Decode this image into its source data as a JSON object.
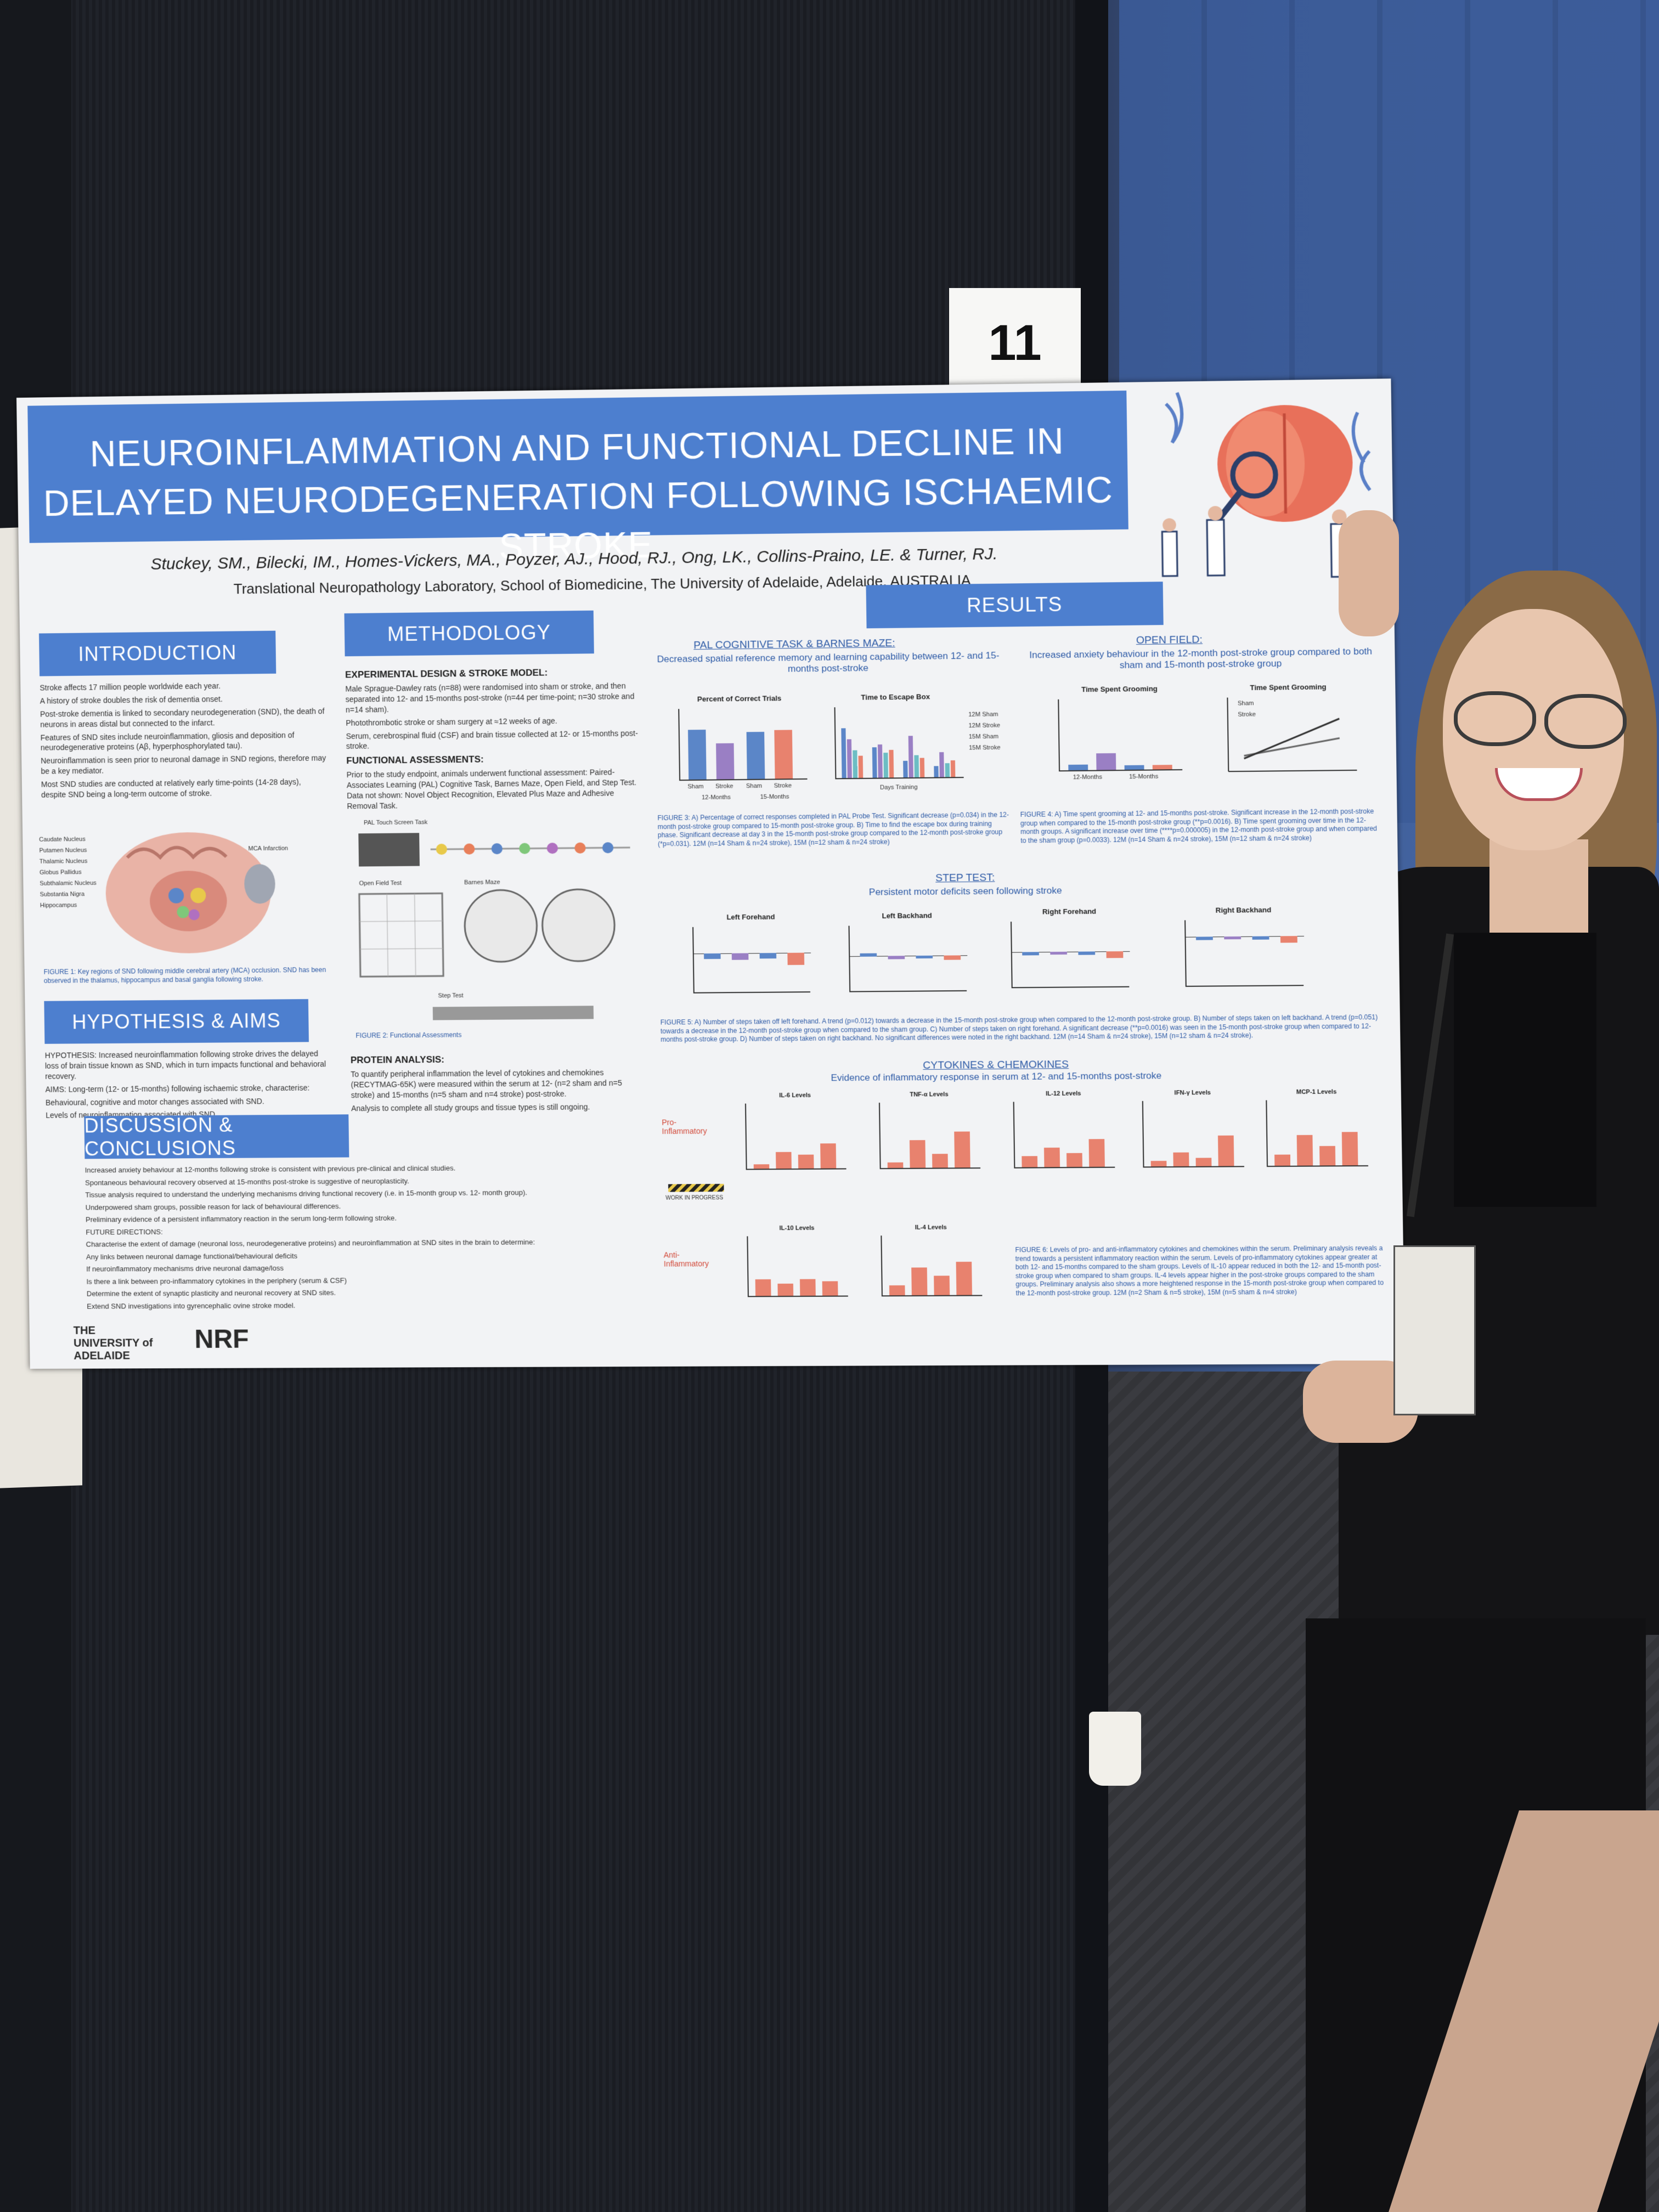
{
  "card_number": "11",
  "poster": {
    "title": "NEUROINFLAMMATION AND FUNCTIONAL DECLINE IN DELAYED NEURODEGENERATION FOLLOWING ISCHAEMIC STROKE",
    "authors": "Stuckey, SM., Bilecki, IM., Homes-Vickers, MA., Poyzer, AJ., Hood, RJ., Ong, LK., Collins-Praino, LE. & Turner, RJ.",
    "affiliation": "Translational Neuropathology Laboratory, School of Biomedicine, The University of Adelaide, Adelaide, AUSTRALIA",
    "sections": {
      "introduction": "INTRODUCTION",
      "methodology": "METHODOLOGY",
      "hypothesis": "HYPOTHESIS & AIMS",
      "discussion": "DISCUSSION & CONCLUSIONS",
      "results": "RESULTS"
    },
    "intro_text": [
      "Stroke affects 17 million people worldwide each year.",
      "A history of stroke doubles the risk of dementia onset.",
      "Post-stroke dementia is linked to secondary neurodegeneration (SND), the death of neurons in areas distal but connected to the infarct.",
      "Features of SND sites include neuroinflammation, gliosis and deposition of neurodegenerative proteins (Aβ, hyperphosphorylated tau).",
      "Neuroinflammation is seen prior to neuronal damage in SND regions, therefore may be a key mediator.",
      "Most SND studies are conducted at relatively early time-points (14-28 days), despite SND being a long-term outcome of stroke."
    ],
    "intro_figure_caption": "FIGURE 1: Key regions of SND following middle cerebral artery (MCA) occlusion. SND has been observed in the thalamus, hippocampus and basal ganglia following stroke.",
    "intro_figure_labels": [
      "MCA Infarction",
      "Caudate Nucleus",
      "Putamen Nucleus",
      "Thalamic Nucleus",
      "Globus Pallidus",
      "Subthalamic Nucleus",
      "Substantia Nigra",
      "Hippocampus"
    ],
    "hypothesis_text": [
      "HYPOTHESIS: Increased neuroinflammation following stroke drives the delayed loss of brain tissue known as SND, which in turn impacts functional and behavioral recovery.",
      "AIMS: Long-term (12- or 15-months) following ischaemic stroke, characterise:",
      "Behavioural, cognitive and motor changes associated with SND.",
      "Levels of neuroinflammation associated with SND."
    ],
    "methodology_text": {
      "design_head": "EXPERIMENTAL DESIGN & STROKE MODEL:",
      "design": [
        "Male Sprague-Dawley rats (n=88) were randomised into sham or stroke, and then separated into 12- and 15-months post-stroke (n=44 per time-point; n=30 stroke and n=14 sham).",
        "Photothrombotic stroke or sham surgery at ≈12 weeks of age.",
        "Serum, cerebrospinal fluid (CSF) and brain tissue collected at 12- or 15-months post-stroke."
      ],
      "functional_head": "FUNCTIONAL ASSESSMENTS:",
      "functional": "Prior to the study endpoint, animals underwent functional assessment: Paired-Associates Learning (PAL) Cognitive Task, Barnes Maze, Open Field, and Step Test. Data not shown: Novel Object Recognition, Elevated Plus Maze and Adhesive Removal Task.",
      "figure2_caption": "FIGURE 2: Functional Assessments",
      "figure2_labels": [
        "PAL Touch Screen Task",
        "Open Field Test",
        "Barnes Maze",
        "Step Test"
      ],
      "protein_head": "PROTEIN ANALYSIS:",
      "protein": [
        "To quantify peripheral inflammation the level of cytokines and chemokines (RECYTMAG-65K) were measured within the serum at 12- (n=2 sham and n=5 stroke) and 15-months (n=5 sham and n=4 stroke) post-stroke.",
        "Analysis to complete all study groups and tissue types is still ongoing."
      ]
    },
    "discussion_text": [
      "Increased anxiety behaviour at 12-months following stroke is consistent with previous pre-clinical and clinical studies.",
      "Spontaneous behavioural recovery observed at 15-months post-stroke is suggestive of neuroplasticity.",
      "Tissue analysis required to understand the underlying mechanisms driving functional recovery (i.e. in 15-month group vs. 12- month group).",
      "Underpowered sham groups, possible reason for lack of behavioural differences.",
      "Preliminary evidence of a persistent inflammatory reaction in the serum long-term following stroke.",
      "FUTURE DIRECTIONS:",
      "Characterise the extent of damage (neuronal loss, neurodegenerative proteins) and neuroinflammation at SND sites in the brain to determine:",
      "Any links between neuronal damage functional/behavioural deficits",
      "If neuroinflammatory mechanisms drive neuronal damage/loss",
      "Is there a link between pro-inflammatory cytokines in the periphery (serum & CSF)",
      "Determine the extent of synaptic plasticity and neuronal recovery at SND sites.",
      "Extend SND investigations into gyrencephalic ovine stroke model."
    ],
    "results": {
      "pal_head": "PAL COGNITIVE TASK & BARNES MAZE:",
      "pal_sub": "Decreased spatial reference memory and learning capability between 12- and 15-months post-stroke",
      "open_field_head": "OPEN FIELD:",
      "open_field_sub": "Increased anxiety behaviour in the 12-month post-stroke group compared to both sham and 15-month post-stroke group",
      "step_head": "STEP TEST:",
      "step_sub": "Persistent motor deficits seen following stroke",
      "cyto_head": "CYTOKINES & CHEMOKINES",
      "cyto_sub": "Evidence of inflammatory response in serum at 12- and 15-months post-stroke",
      "fig3_caption": "FIGURE 3: A) Percentage of correct responses completed in PAL Probe Test. Significant decrease (p=0.034) in the 12-month post-stroke group compared to 15-month post-stroke group. B) Time to find the escape box during training phase. Significant decrease at day 3 in the 15-month post-stroke group compared to the 12-month post-stroke group (*p=0.031). 12M (n=14 Sham & n=24 stroke), 15M (n=12 sham & n=24 stroke)",
      "fig4_caption": "FIGURE 4: A) Time spent grooming at 12- and 15-months post-stroke. Significant increase in the 12-month post-stroke group when compared to the 15-month post-stroke group (**p=0.0016). B) Time spent grooming over time in the 12-month groups. A significant increase over time (****p=0.000005) in the 12-month post-stroke group and when compared to the sham group (p=0.0033). 12M (n=14 Sham & n=24 stroke), 15M (n=12 sham & n=24 stroke)",
      "fig5_caption": "FIGURE 5: A) Number of steps taken off left forehand. A trend (p=0.012) towards a decrease in the 15-month post-stroke group when compared to the 12-month post-stroke group. B) Number of steps taken on left backhand. A trend (p=0.051) towards a decrease in the 12-month post-stroke group when compared to the sham group. C) Number of steps taken on right forehand. A significant decrease (**p=0.0016) was seen in the 15-month post-stroke group when compared to 12-months post-stroke group. D) Number of steps taken on right backhand. No significant differences were noted in the right backhand. 12M (n=14 Sham & n=24 stroke), 15M (n=12 sham & n=24 stroke).",
      "fig6_caption": "FIGURE 6: Levels of pro- and anti-inflammatory cytokines and chemokines within the serum. Preliminary analysis reveals a trend towards a persistent inflammatory reaction within the serum. Levels of pro-inflammatory cytokines appear greater at both 12- and 15-months compared to the sham groups. Levels of IL-10 appear reduced in both the 12- and 15-month post-stroke group when compared to sham groups. IL-4 levels appear higher in the post-stroke groups compared to the sham groups. Preliminary analysis also shows a more heightened response in the 15-month post-stroke group when compared to the 12-month post-stroke group. 12M (n=2 Sham & n=5 stroke), 15M (n=5 sham & n=4 stroke)",
      "panel_titles": {
        "pct_correct": "Percent of Correct Trials",
        "escape": "Time to Escape Box",
        "grooming_a": "Time Spent Grooming",
        "grooming_b": "Time Spent Grooming",
        "left_forehand": "Left Forehand",
        "left_backhand": "Left Backhand",
        "right_forehand": "Right Forehand",
        "right_backhand": "Right Backhand",
        "il6": "IL-6 Levels",
        "tnfa": "TNF-α Levels",
        "il12": "IL-12 Levels",
        "ifng": "IFN-γ Levels",
        "mcp1": "MCP-1 Levels",
        "il10": "IL-10 Levels",
        "il4": "IL-4 Levels"
      },
      "group_labels": [
        "Sham",
        "Stroke",
        "Sham",
        "Stroke"
      ],
      "timepoint_labels": [
        "12-Months",
        "15-Months"
      ],
      "escape_legend": [
        "12M Sham",
        "12M Stroke",
        "15M Sham",
        "15M Stroke"
      ],
      "grooming_legend": [
        "Sham",
        "Stroke"
      ],
      "pro_label": "Pro-Inflammatory",
      "anti_label": "Anti-Inflammatory",
      "work_in_progress": "WORK IN PROGRESS",
      "days_training": "Days Training"
    },
    "logos": {
      "adelaide": "THE UNIVERSITY of ADELAIDE",
      "nrf": "NRF"
    }
  },
  "colors": {
    "header_blue": "#4d7fcf",
    "sham_blue": "#5b86c8",
    "stroke_purple": "#9a7fc4",
    "cyto_orange": "#e8826e"
  }
}
